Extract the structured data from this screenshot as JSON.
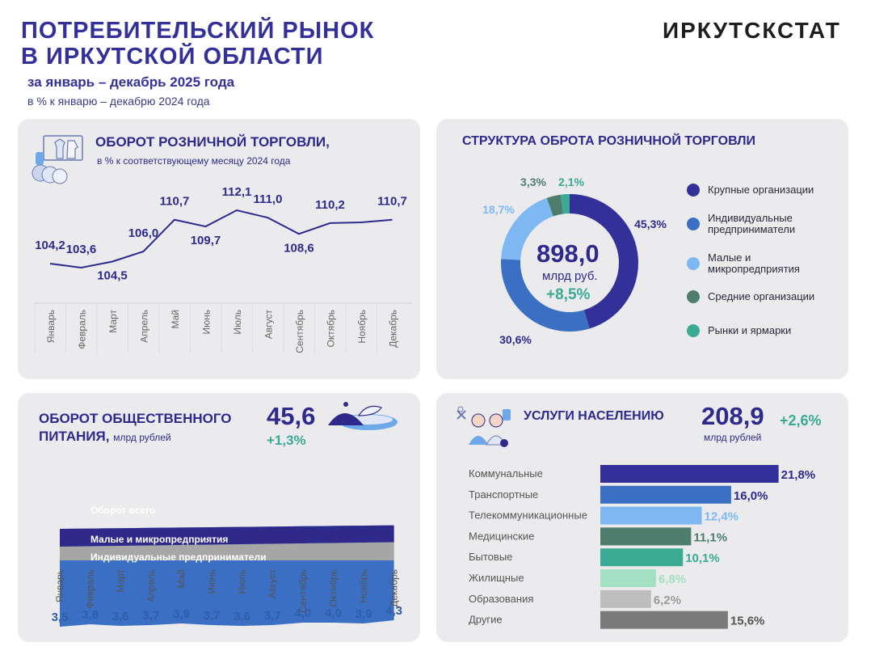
{
  "header": {
    "title_line1": "ПОТРЕБИТЕЛЬСКИЙ РЫНОК",
    "title_line2": "В ИРКУТСКОЙ ОБЛАСТИ",
    "period": "за январь – декабрь 2025 года",
    "unit": "в % к январю – декабрю 2024 года",
    "brand": "ИРКУТСКСТАТ"
  },
  "retail": {
    "title": "ОБОРОТ РОЗНИЧНОЙ ТОРГОВЛИ,",
    "subtitle": "в % к соответствующему месяцу 2024 года"
  },
  "structure": {
    "title": "СТРУКТУРА ОБРОТА РОЗНИЧНОЙ ТОРГОВЛИ",
    "total": "898,0",
    "unit": "млрд руб.",
    "growth": "+8,5%",
    "legend": [
      {
        "label": "Крупные организации",
        "color": "#33309a"
      },
      {
        "label": "Индивидуальные предприниматели",
        "color": "#3a6fc4"
      },
      {
        "label": "Малые и микропредприятия",
        "color": "#7db8f2"
      },
      {
        "label": "Средние организации",
        "color": "#4e7d6e"
      },
      {
        "label": "Рынки и ярмарки",
        "color": "#3aaa92"
      }
    ]
  },
  "catering": {
    "title_line1": "ОБОРОТ ОБЩЕСТВЕННОГО",
    "title_line2": "ПИТАНИЯ,",
    "title_unit": "млрд рублей",
    "total": "45,6",
    "growth": "+1,3%",
    "band_total": "Оборот всего",
    "band_small": "Малые и микропредприятия",
    "band_ip": "Индивидуальные предприниматели"
  },
  "services": {
    "title": "УСЛУГИ НАСЕЛЕНИЮ",
    "total": "208,9",
    "growth": "+2,6%",
    "unit": "млрд рублей"
  },
  "chart_data": [
    {
      "type": "line",
      "title": "ОБОРОТ РОЗНИЧНОЙ ТОРГОВЛИ, в % к соответствующему месяцу 2024 года",
      "categories": [
        "Январь",
        "Февраль",
        "Март",
        "Апрель",
        "Май",
        "Июнь",
        "Июль",
        "Август",
        "Сентябрь",
        "Октябрь",
        "Ноябрь",
        "Декабрь"
      ],
      "values": [
        104.2,
        103.6,
        104.5,
        106.0,
        110.7,
        109.7,
        112.1,
        111.0,
        108.6,
        110.2,
        110.3,
        110.7
      ],
      "labels": [
        "104,2",
        "103,6",
        "104,5",
        "106,0",
        "110,7",
        "109,7",
        "112,1",
        "111,0",
        "108,6",
        "110,2",
        "",
        "110,7"
      ],
      "ylim": [
        100,
        114
      ]
    },
    {
      "type": "pie",
      "title": "СТРУКТУРА ОБРОТА РОЗНИЧНОЙ ТОРГОВЛИ",
      "categories": [
        "Крупные организации",
        "Индивидуальные предприниматели",
        "Малые и микропредприятия",
        "Средние организации",
        "Рынки и ярмарки"
      ],
      "values": [
        45.3,
        30.6,
        18.7,
        3.3,
        2.1
      ],
      "labels": [
        "45,3%",
        "30,6%",
        "18,7%",
        "3,3%",
        "2,1%"
      ],
      "colors": [
        "#33309a",
        "#3a6fc4",
        "#7db8f2",
        "#4e7d6e",
        "#3aaa92"
      ]
    },
    {
      "type": "area",
      "title": "ОБОРОТ ОБЩЕСТВЕННОГО ПИТАНИЯ, млрд рублей",
      "categories": [
        "Январь",
        "Февраль",
        "Март",
        "Апрель",
        "Май",
        "Июнь",
        "Июль",
        "Август",
        "Сентябрь",
        "Октябрь",
        "Ноябрь",
        "Декабрь"
      ],
      "totals": [
        3.5,
        3.8,
        3.6,
        3.7,
        3.9,
        3.7,
        3.6,
        3.7,
        4.0,
        4.0,
        3.9,
        4.3
      ],
      "total_labels": [
        "3,5",
        "3,8",
        "3,6",
        "3,7",
        "3,9",
        "3,7",
        "3,6",
        "3,7",
        "4,0",
        "4,0",
        "3,9",
        "4,3"
      ],
      "series": [
        {
          "name": "Индивидуальные предприниматели",
          "color": "#a6a6a6"
        },
        {
          "name": "Малые и микропредприятия",
          "color": "#2e2a8c"
        },
        {
          "name": "Оборот всего",
          "color": "#3a6fc4"
        }
      ]
    },
    {
      "type": "bar",
      "title": "УСЛУГИ НАСЕЛЕНИЮ",
      "categories": [
        "Коммунальные",
        "Транспортные",
        "Телекоммуникационные",
        "Медицинские",
        "Бытовые",
        "Жилищные",
        "Образования",
        "Другие"
      ],
      "values": [
        21.8,
        16.0,
        12.4,
        11.1,
        10.1,
        6.8,
        6.2,
        15.6
      ],
      "labels": [
        "21,8%",
        "16,0%",
        "12,4%",
        "11,1%",
        "10,1%",
        "6,8%",
        "6,2%",
        "15,6%"
      ],
      "colors": [
        "#33309a",
        "#3a6fc4",
        "#7db8f2",
        "#4e7d6e",
        "#3aaa92",
        "#a3dfc3",
        "#bdbdbd",
        "#7a7a7a"
      ],
      "label_colors": [
        "#2e2a8c",
        "#2e2a8c",
        "#7db8f2",
        "#4e7d6e",
        "#3aaa92",
        "#a3dfc3",
        "#9a9a9a",
        "#555555"
      ],
      "xlim": [
        0,
        22
      ]
    }
  ]
}
